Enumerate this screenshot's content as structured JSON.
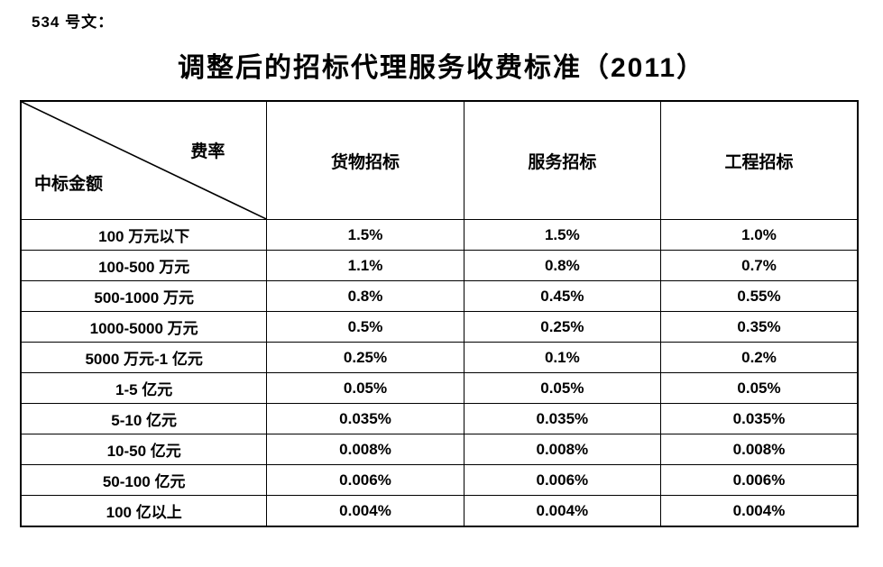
{
  "page": {
    "doc_label": "534 号文：",
    "title": "调整后的招标代理服务收费标准（2011）"
  },
  "table": {
    "corner": {
      "top_right": "费率",
      "bottom_left": "中标金额"
    },
    "columns": [
      "货物招标",
      "服务招标",
      "工程招标"
    ],
    "rows": [
      {
        "label": "100 万元以下",
        "values": [
          "1.5%",
          "1.5%",
          "1.0%"
        ]
      },
      {
        "label": "100-500 万元",
        "values": [
          "1.1%",
          "0.8%",
          "0.7%"
        ]
      },
      {
        "label": "500-1000 万元",
        "values": [
          "0.8%",
          "0.45%",
          "0.55%"
        ]
      },
      {
        "label": "1000-5000 万元",
        "values": [
          "0.5%",
          "0.25%",
          "0.35%"
        ]
      },
      {
        "label": "5000 万元-1 亿元",
        "values": [
          "0.25%",
          "0.1%",
          "0.2%"
        ]
      },
      {
        "label": "1-5 亿元",
        "values": [
          "0.05%",
          "0.05%",
          "0.05%"
        ]
      },
      {
        "label": "5-10 亿元",
        "values": [
          "0.035%",
          "0.035%",
          "0.035%"
        ]
      },
      {
        "label": "10-50 亿元",
        "values": [
          "0.008%",
          "0.008%",
          "0.008%"
        ]
      },
      {
        "label": "50-100 亿元",
        "values": [
          "0.006%",
          "0.006%",
          "0.006%"
        ]
      },
      {
        "label": "100 亿以上",
        "values": [
          "0.004%",
          "0.004%",
          "0.004%"
        ]
      }
    ],
    "colors": {
      "border": "#000000",
      "text": "#000000",
      "background": "#ffffff"
    }
  }
}
